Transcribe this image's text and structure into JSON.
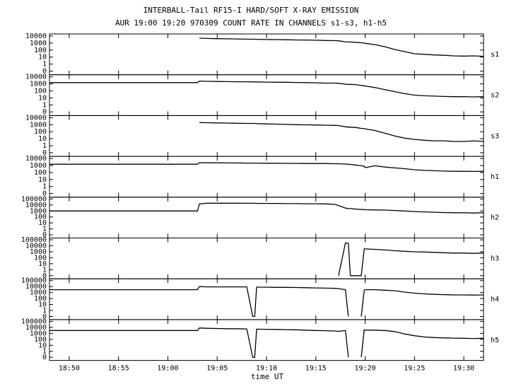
{
  "chart_data": {
    "type": "line",
    "title": "INTERBALL-Tail RF15-I HARD/SOFT X-RAY EMISSION",
    "subtitle": "AUR 19:00 19:20 970309  COUNT RATE IN CHANNELS s1-s3, h1-h5",
    "xlabel": "time UT",
    "log_y": true,
    "x": [
      1128,
      1129,
      1130,
      1131,
      1132,
      1133,
      1134,
      1135,
      1136,
      1137,
      1138,
      1139,
      1140,
      1141,
      1142,
      1143,
      1143.2,
      1144,
      1145,
      1146,
      1147,
      1148,
      1148.6,
      1148.8,
      1149,
      1150,
      1151,
      1152,
      1153,
      1154,
      1155,
      1156,
      1157,
      1157.3,
      1158,
      1158.3,
      1158.5,
      1159,
      1159.6,
      1159.9,
      1160,
      1161,
      1162,
      1163,
      1164,
      1165,
      1166,
      1167,
      1168,
      1169,
      1170,
      1171,
      1172
    ],
    "xlim": [
      1128,
      1172
    ],
    "xticks": [
      {
        "value": 1130,
        "label": "18:50"
      },
      {
        "value": 1135,
        "label": "18:55"
      },
      {
        "value": 1140,
        "label": "19:00"
      },
      {
        "value": 1145,
        "label": "19:05"
      },
      {
        "value": 1150,
        "label": "19:10"
      },
      {
        "value": 1155,
        "label": "19:15"
      },
      {
        "value": 1160,
        "label": "19:20"
      },
      {
        "value": 1165,
        "label": "19:25"
      },
      {
        "value": 1170,
        "label": "19:30"
      }
    ],
    "series": [
      {
        "name": "s1",
        "color": "#000000",
        "ylim": [
          0.03,
          20000
        ],
        "yticks": [
          {
            "value": 0.1,
            "label": "0"
          },
          1,
          10,
          100,
          1000,
          10000
        ],
        "values": [
          null,
          null,
          null,
          null,
          null,
          null,
          null,
          null,
          null,
          null,
          null,
          null,
          null,
          null,
          null,
          null,
          5000,
          4500,
          4200,
          4000,
          3800,
          3600,
          3500,
          3500,
          3400,
          3200,
          3100,
          3000,
          2800,
          2700,
          2500,
          2300,
          2200,
          2100,
          1500,
          1400,
          1400,
          1300,
          1100,
          1000,
          900,
          600,
          300,
          120,
          60,
          30,
          25,
          20,
          18,
          15,
          14,
          15,
          13
        ]
      },
      {
        "name": "s2",
        "color": "#000000",
        "ylim": [
          0.03,
          20000
        ],
        "yticks": [
          {
            "value": 0.1,
            "label": "0"
          },
          1,
          10,
          100,
          1000,
          10000
        ],
        "values": [
          1500,
          1500,
          1500,
          1500,
          1500,
          1500,
          1500,
          1500,
          1500,
          1500,
          1500,
          1500,
          1500,
          1500,
          1500,
          1500,
          2500,
          2300,
          2200,
          2100,
          2000,
          2000,
          1900,
          1900,
          1900,
          1800,
          1700,
          1700,
          1600,
          1500,
          1400,
          1300,
          1300,
          1200,
          900,
          850,
          850,
          800,
          600,
          550,
          500,
          300,
          150,
          80,
          40,
          25,
          20,
          18,
          16,
          15,
          15,
          14,
          15
        ]
      },
      {
        "name": "s3",
        "color": "#000000",
        "ylim": [
          0.03,
          20000
        ],
        "yticks": [
          {
            "value": 0.1,
            "label": "0"
          },
          1,
          10,
          100,
          1000,
          10000
        ],
        "values": [
          null,
          null,
          null,
          null,
          null,
          null,
          null,
          null,
          null,
          null,
          null,
          null,
          null,
          null,
          null,
          null,
          2000,
          1900,
          1800,
          1700,
          1600,
          1500,
          1500,
          1500,
          1400,
          1300,
          1200,
          1100,
          1000,
          950,
          900,
          850,
          800,
          750,
          500,
          450,
          450,
          400,
          300,
          280,
          250,
          150,
          60,
          25,
          12,
          8,
          6,
          5,
          5,
          4,
          4,
          5,
          4
        ]
      },
      {
        "name": "h1",
        "color": "#000000",
        "ylim": [
          0.03,
          20000
        ],
        "yticks": [
          {
            "value": 0.1,
            "label": "0"
          },
          1,
          10,
          100,
          1000,
          10000
        ],
        "values": [
          1500,
          1500,
          1500,
          1500,
          1500,
          1500,
          1500,
          1500,
          1500,
          1500,
          1500,
          1500,
          1500,
          1500,
          1500,
          1500,
          2500,
          2400,
          2400,
          2300,
          2300,
          2200,
          2200,
          2200,
          2200,
          2100,
          2100,
          2000,
          2000,
          1900,
          1900,
          1900,
          1800,
          1800,
          1600,
          1500,
          1400,
          1200,
          900,
          800,
          500,
          900,
          600,
          450,
          350,
          250,
          200,
          180,
          160,
          150,
          150,
          140,
          150
        ]
      },
      {
        "name": "h2",
        "color": "#000000",
        "ylim": [
          0.03,
          200000
        ],
        "yticks": [
          {
            "value": 0.1,
            "label": "0"
          },
          1,
          10,
          100,
          1000,
          10000,
          100000
        ],
        "values": [
          1000,
          1000,
          1000,
          1000,
          1000,
          1000,
          1000,
          1000,
          1000,
          1000,
          1000,
          1000,
          1000,
          1000,
          1000,
          1000,
          15000,
          20000,
          20000,
          20000,
          20000,
          19000,
          19000,
          19000,
          18000,
          18000,
          18000,
          17000,
          17000,
          16000,
          16000,
          15000,
          12000,
          8000,
          3000,
          2500,
          2500,
          2000,
          1800,
          1700,
          1600,
          1500,
          1400,
          1200,
          1000,
          800,
          700,
          600,
          550,
          500,
          500,
          450,
          500
        ]
      },
      {
        "name": "h3",
        "color": "#000000",
        "ylim": [
          0.03,
          200000
        ],
        "yticks": [
          {
            "value": 0.1,
            "label": "0"
          },
          1,
          10,
          100,
          1000,
          10000,
          100000
        ],
        "values": [
          null,
          null,
          null,
          null,
          null,
          null,
          null,
          null,
          null,
          null,
          null,
          null,
          null,
          null,
          null,
          null,
          null,
          null,
          null,
          null,
          null,
          null,
          null,
          null,
          null,
          null,
          null,
          null,
          null,
          null,
          null,
          null,
          null,
          0.1,
          30000,
          25000,
          0.1,
          0.1,
          0.1,
          3000,
          3000,
          2500,
          2000,
          1500,
          1200,
          1000,
          900,
          800,
          700,
          600,
          600,
          550,
          600
        ]
      },
      {
        "name": "h4",
        "color": "#000000",
        "ylim": [
          0.03,
          200000
        ],
        "yticks": [
          {
            "value": 0.1,
            "label": "0"
          },
          1,
          10,
          100,
          1000,
          10000,
          100000
        ],
        "values": [
          3000,
          3000,
          3000,
          3000,
          3000,
          3000,
          3000,
          3000,
          3000,
          3000,
          3000,
          3000,
          3000,
          3000,
          3000,
          3000,
          10000,
          9000,
          9000,
          9000,
          9000,
          9000,
          0.1,
          0.1,
          8000,
          8000,
          7500,
          7500,
          7000,
          6500,
          6000,
          5500,
          5000,
          4500,
          3000,
          0.1,
          null,
          null,
          0.1,
          2500,
          3000,
          3000,
          2500,
          2000,
          1200,
          800,
          600,
          500,
          450,
          400,
          400,
          380,
          400
        ]
      },
      {
        "name": "h5",
        "color": "#000000",
        "ylim": [
          0.03,
          200000
        ],
        "yticks": [
          {
            "value": 0.1,
            "label": "0"
          },
          1,
          10,
          100,
          1000,
          10000,
          100000
        ],
        "values": [
          3000,
          3000,
          3000,
          3000,
          3000,
          3000,
          3000,
          3000,
          3000,
          3000,
          3000,
          3000,
          3000,
          3000,
          3000,
          3000,
          8000,
          7000,
          6500,
          6000,
          6000,
          5500,
          0.1,
          0.1,
          5000,
          4800,
          4500,
          4200,
          4000,
          3500,
          3000,
          2800,
          2500,
          2200,
          3000,
          0.1,
          null,
          null,
          0.1,
          4000,
          3500,
          3500,
          3000,
          2000,
          800,
          400,
          250,
          200,
          180,
          160,
          150,
          140,
          150
        ]
      }
    ]
  }
}
